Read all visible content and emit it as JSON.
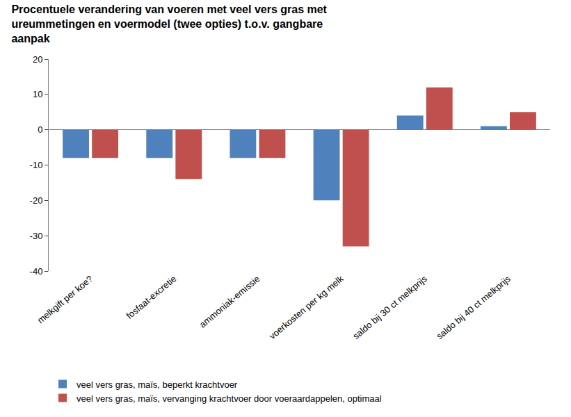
{
  "chart_data": {
    "type": "bar",
    "title": "Procentuele verandering van voeren met veel vers gras met ureummetingen en voermodel (twee opties) t.o.v. gangbare aanpak",
    "categories": [
      "melkgift per koe?",
      "fosfaat-excretie",
      "ammoniak-emissie",
      "voerkosten per kg melk",
      "saldo bij 30 ct melkprijs",
      "saldo bij 40 ct melkprijs"
    ],
    "series": [
      {
        "name": "veel vers gras, maïs, beperkt krachtvoer",
        "color": "#4f81bd",
        "values": [
          -8,
          -8,
          -8,
          -20,
          4,
          1
        ]
      },
      {
        "name": "veel vers gras, maïs, vervanging krachtvoer door voeraardappelen, optimaal",
        "color": "#c0504d",
        "values": [
          -8,
          -14,
          -8,
          -33,
          12,
          5
        ]
      }
    ],
    "ylim": [
      -40,
      20
    ],
    "yticks": [
      -40,
      -30,
      -20,
      -10,
      0,
      10,
      20
    ],
    "grid": false,
    "legend": "bottom"
  }
}
